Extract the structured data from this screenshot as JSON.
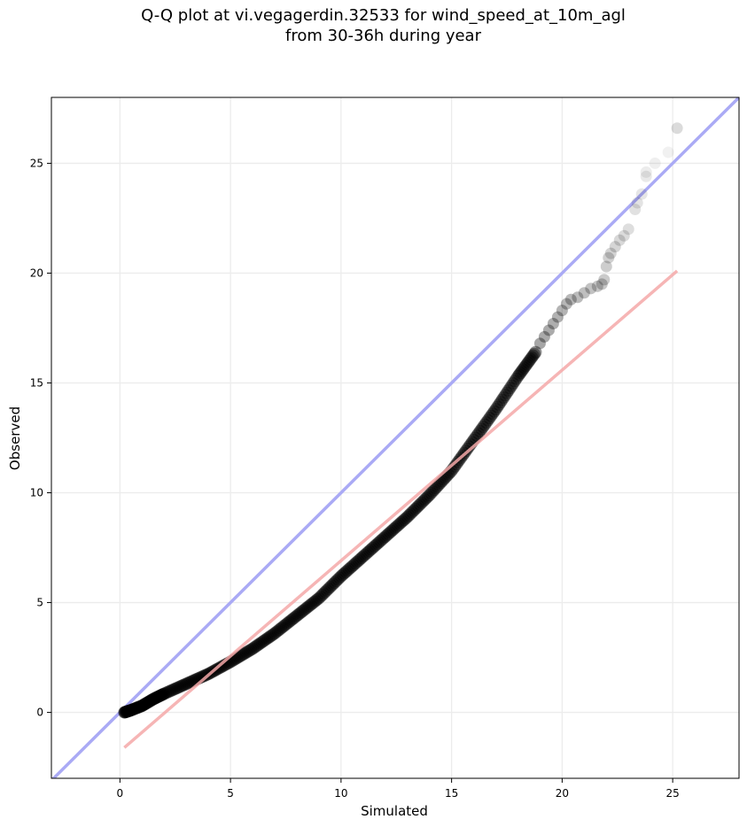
{
  "chart_data": {
    "type": "scatter",
    "title_line1": "Q-Q plot at vi.vegagerdin.32533 for wind_speed_at_10m_agl",
    "title_line2": "from 30-36h during year",
    "xlabel": "Simulated",
    "ylabel": "Observed",
    "xlim": [
      -3.1,
      28.0
    ],
    "ylim": [
      -3.0,
      28.0
    ],
    "xticks": [
      0,
      5,
      10,
      15,
      20,
      25
    ],
    "yticks": [
      0,
      5,
      10,
      15,
      20,
      25
    ],
    "grid": true,
    "colors": {
      "points": "#000000",
      "identity_line": "#aaaaf5",
      "fit_line": "#f5a8a8"
    },
    "identity_line": {
      "x": [
        -3.1,
        28.0
      ],
      "y": [
        -3.1,
        28.0
      ]
    },
    "fit_line": {
      "x": [
        0.2,
        25.2
      ],
      "y": [
        -1.6,
        20.1
      ]
    },
    "quantile_curve": {
      "x": [
        0.2,
        0.5,
        1.0,
        1.5,
        2.0,
        3.0,
        4.0,
        5.0,
        6.0,
        7.0,
        8.0,
        9.0,
        10.0,
        11.0,
        12.0,
        13.0,
        14.0,
        15.0,
        16.0,
        17.0,
        18.0,
        18.8
      ],
      "y": [
        0.0,
        0.1,
        0.3,
        0.6,
        0.85,
        1.3,
        1.75,
        2.3,
        2.9,
        3.6,
        4.4,
        5.2,
        6.2,
        7.1,
        8.0,
        8.9,
        9.9,
        11.0,
        12.4,
        13.8,
        15.3,
        16.4
      ]
    },
    "tail_points": {
      "x": [
        19.0,
        19.2,
        19.4,
        19.6,
        19.8,
        20.0,
        20.2,
        20.4,
        20.7,
        21.0,
        21.3,
        21.6,
        21.8,
        21.9,
        22.0,
        22.1,
        22.2,
        22.4,
        22.6,
        22.8,
        23.0,
        23.3,
        23.4,
        23.6,
        23.8,
        23.8,
        24.2,
        24.8
      ],
      "y": [
        16.8,
        17.1,
        17.4,
        17.7,
        18.0,
        18.3,
        18.6,
        18.8,
        18.9,
        19.1,
        19.3,
        19.4,
        19.5,
        19.7,
        20.3,
        20.7,
        20.9,
        21.2,
        21.5,
        21.7,
        22.0,
        22.9,
        23.2,
        23.6,
        24.4,
        24.6,
        25.0,
        25.5
      ]
    },
    "max_point": {
      "x": 25.2,
      "y": 26.6
    }
  }
}
